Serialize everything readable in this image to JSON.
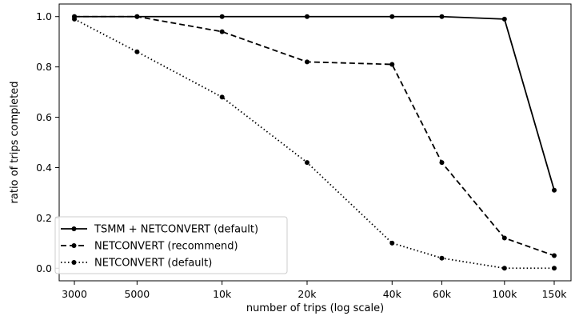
{
  "chart_data": {
    "type": "line",
    "title": "",
    "xlabel": "number of trips (log scale)",
    "ylabel": "ratio of trips completed",
    "x_scale": "log",
    "x": [
      3000,
      5000,
      10000,
      20000,
      40000,
      60000,
      100000,
      150000
    ],
    "x_tick_labels": [
      "3000",
      "5000",
      "10k",
      "20k",
      "40k",
      "60k",
      "100k",
      "150k"
    ],
    "ylim": [
      0.0,
      1.0
    ],
    "y_ticks": [
      0.0,
      0.2,
      0.4,
      0.6,
      0.8,
      1.0
    ],
    "y_tick_labels": [
      "0.0",
      "0.2",
      "0.4",
      "0.6",
      "0.8",
      "1.0"
    ],
    "grid": false,
    "legend_position": "lower-left",
    "series": [
      {
        "name": "TSMM + NETCONVERT (default)",
        "line_style": "solid",
        "color": "#000000",
        "values": [
          1.0,
          1.0,
          1.0,
          1.0,
          1.0,
          1.0,
          0.99,
          0.31
        ]
      },
      {
        "name": "NETCONVERT (recommend)",
        "line_style": "dashed",
        "color": "#000000",
        "values": [
          1.0,
          1.0,
          0.94,
          0.82,
          0.81,
          0.42,
          0.12,
          0.05
        ]
      },
      {
        "name": "NETCONVERT (default)",
        "line_style": "dotted",
        "color": "#000000",
        "values": [
          0.99,
          0.86,
          0.68,
          0.42,
          0.1,
          0.04,
          0.0,
          0.0
        ]
      }
    ]
  }
}
